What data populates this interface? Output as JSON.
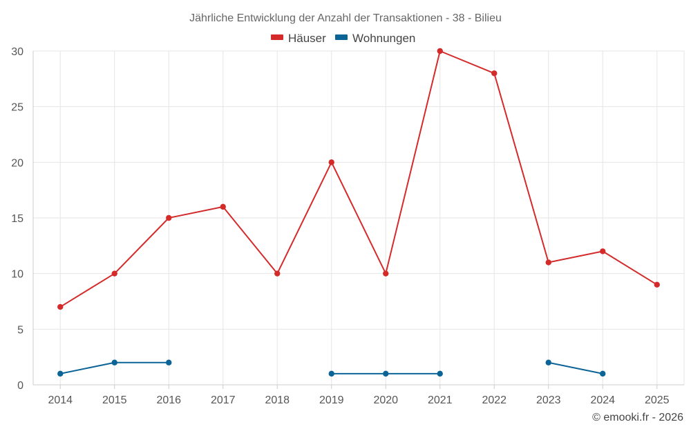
{
  "chart_data": {
    "type": "line",
    "title": "Jährliche Entwicklung der Anzahl der Transaktionen - 38 - Bilieu",
    "xlabel": "",
    "ylabel": "",
    "categories": [
      "2014",
      "2015",
      "2016",
      "2017",
      "2018",
      "2019",
      "2020",
      "2021",
      "2022",
      "2023",
      "2024",
      "2025"
    ],
    "ylim": [
      0,
      30
    ],
    "yticks": [
      0,
      5,
      10,
      15,
      20,
      25,
      30
    ],
    "grid": true,
    "legend_position": "top-center",
    "series": [
      {
        "name": "Häuser",
        "color": "#d42a2a",
        "values": [
          7,
          10,
          15,
          16,
          10,
          20,
          10,
          30,
          28,
          11,
          12,
          9
        ]
      },
      {
        "name": "Wohnungen",
        "color": "#0a6496",
        "values": [
          1,
          2,
          2,
          null,
          null,
          1,
          1,
          1,
          null,
          2,
          1,
          null
        ]
      }
    ]
  },
  "credit": "© emooki.fr - 2026"
}
